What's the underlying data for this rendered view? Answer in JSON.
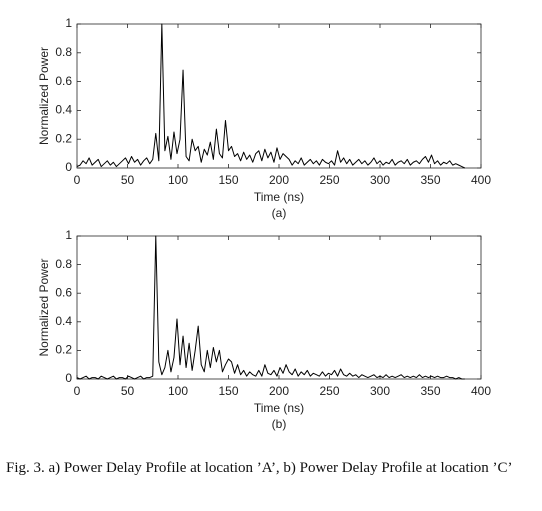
{
  "chart_data": [
    {
      "type": "line",
      "xlabel": "Time (ns)",
      "ylabel": "Normalized Power",
      "panel_label": "(a)",
      "color": "#000000",
      "xlim": [
        0,
        400
      ],
      "ylim": [
        0,
        1
      ],
      "xticks": [
        0,
        50,
        100,
        150,
        200,
        250,
        300,
        350,
        400
      ],
      "yticks": [
        0,
        0.2,
        0.4,
        0.6,
        0.8,
        1
      ],
      "x": [
        0,
        3,
        6,
        9,
        12,
        15,
        18,
        21,
        24,
        27,
        30,
        33,
        36,
        39,
        42,
        45,
        48,
        51,
        54,
        57,
        60,
        63,
        66,
        69,
        72,
        75,
        78,
        81,
        84,
        87,
        90,
        93,
        96,
        99,
        102,
        105,
        108,
        111,
        114,
        117,
        120,
        123,
        126,
        129,
        132,
        135,
        138,
        141,
        144,
        147,
        150,
        153,
        156,
        159,
        162,
        165,
        168,
        171,
        174,
        177,
        180,
        183,
        186,
        189,
        192,
        195,
        198,
        201,
        204,
        207,
        210,
        213,
        216,
        219,
        222,
        225,
        228,
        231,
        234,
        237,
        240,
        243,
        246,
        249,
        252,
        255,
        258,
        261,
        264,
        267,
        270,
        273,
        276,
        279,
        282,
        285,
        288,
        291,
        294,
        297,
        300,
        303,
        306,
        309,
        312,
        315,
        318,
        321,
        324,
        327,
        330,
        333,
        336,
        339,
        342,
        345,
        348,
        351,
        354,
        357,
        360,
        363,
        366,
        369,
        372,
        375,
        378,
        381,
        384
      ],
      "values": [
        0.01,
        0.02,
        0.05,
        0.03,
        0.07,
        0.02,
        0.04,
        0.06,
        0.01,
        0.03,
        0.05,
        0.02,
        0.04,
        0.01,
        0.03,
        0.05,
        0.07,
        0.03,
        0.08,
        0.04,
        0.06,
        0.02,
        0.05,
        0.07,
        0.03,
        0.06,
        0.24,
        0.05,
        1,
        0.12,
        0.22,
        0.06,
        0.25,
        0.1,
        0.2,
        0.68,
        0.08,
        0.05,
        0.2,
        0.12,
        0.15,
        0.04,
        0.13,
        0.09,
        0.18,
        0.06,
        0.27,
        0.1,
        0.07,
        0.33,
        0.12,
        0.15,
        0.08,
        0.1,
        0.05,
        0.11,
        0.06,
        0.09,
        0.04,
        0.1,
        0.12,
        0.05,
        0.13,
        0.07,
        0.11,
        0.04,
        0.14,
        0.06,
        0.1,
        0.08,
        0.06,
        0.02,
        0.05,
        0.03,
        0.07,
        0.02,
        0.04,
        0.06,
        0.03,
        0.05,
        0.02,
        0.06,
        0.04,
        0.03,
        0.05,
        0.02,
        0.12,
        0.04,
        0.07,
        0.03,
        0.06,
        0.02,
        0.04,
        0.06,
        0.03,
        0.05,
        0.02,
        0.04,
        0.07,
        0.03,
        0.05,
        0.02,
        0.04,
        0.03,
        0.06,
        0.02,
        0.04,
        0.05,
        0.03,
        0.06,
        0.02,
        0.04,
        0.05,
        0.03,
        0.06,
        0.08,
        0.04,
        0.09,
        0.03,
        0.05,
        0.02,
        0.04,
        0.03,
        0.05,
        0.02,
        0.03,
        0.02,
        0.01,
        0
      ]
    },
    {
      "type": "line",
      "xlabel": "Time (ns)",
      "ylabel": "Normalized Power",
      "panel_label": "(b)",
      "color": "#000000",
      "xlim": [
        0,
        400
      ],
      "ylim": [
        0,
        1
      ],
      "xticks": [
        0,
        50,
        100,
        150,
        200,
        250,
        300,
        350,
        400
      ],
      "yticks": [
        0,
        0.2,
        0.4,
        0.6,
        0.8,
        1
      ],
      "x": [
        0,
        3,
        6,
        9,
        12,
        15,
        18,
        21,
        24,
        27,
        30,
        33,
        36,
        39,
        42,
        45,
        48,
        51,
        54,
        57,
        60,
        63,
        66,
        69,
        72,
        75,
        78,
        81,
        84,
        87,
        90,
        93,
        96,
        99,
        102,
        105,
        108,
        111,
        114,
        117,
        120,
        123,
        126,
        129,
        132,
        135,
        138,
        141,
        144,
        147,
        150,
        153,
        156,
        159,
        162,
        165,
        168,
        171,
        174,
        177,
        180,
        183,
        186,
        189,
        192,
        195,
        198,
        201,
        204,
        207,
        210,
        213,
        216,
        219,
        222,
        225,
        228,
        231,
        234,
        237,
        240,
        243,
        246,
        249,
        252,
        255,
        258,
        261,
        264,
        267,
        270,
        273,
        276,
        279,
        282,
        285,
        288,
        291,
        294,
        297,
        300,
        303,
        306,
        309,
        312,
        315,
        318,
        321,
        324,
        327,
        330,
        333,
        336,
        339,
        342,
        345,
        348,
        351,
        354,
        357,
        360,
        363,
        366,
        369,
        372,
        375,
        378,
        381,
        384
      ],
      "values": [
        0.01,
        0,
        0.01,
        0.02,
        0,
        0.01,
        0.01,
        0,
        0.02,
        0.01,
        0,
        0.01,
        0.02,
        0,
        0.01,
        0.01,
        0,
        0.02,
        0.01,
        0,
        0.01,
        0.02,
        0,
        0.01,
        0.01,
        0.02,
        1,
        0.12,
        0.03,
        0.08,
        0.2,
        0.05,
        0.15,
        0.42,
        0.1,
        0.3,
        0.08,
        0.25,
        0.06,
        0.2,
        0.37,
        0.1,
        0.05,
        0.2,
        0.08,
        0.22,
        0.12,
        0.2,
        0.05,
        0.1,
        0.14,
        0.12,
        0.04,
        0.1,
        0.03,
        0.06,
        0.02,
        0.05,
        0.03,
        0.02,
        0.06,
        0.02,
        0.1,
        0.04,
        0.03,
        0.06,
        0.02,
        0.08,
        0.04,
        0.1,
        0.05,
        0.03,
        0.07,
        0.02,
        0.05,
        0.03,
        0.06,
        0.02,
        0.04,
        0.03,
        0.02,
        0.05,
        0.02,
        0.04,
        0.03,
        0.06,
        0.02,
        0.07,
        0.03,
        0.02,
        0.04,
        0.02,
        0.03,
        0.01,
        0.03,
        0.02,
        0.01,
        0.02,
        0.03,
        0.01,
        0.02,
        0.01,
        0.03,
        0.01,
        0.02,
        0.01,
        0.02,
        0.03,
        0.01,
        0.02,
        0.01,
        0.02,
        0.01,
        0.03,
        0.01,
        0.02,
        0.01,
        0.02,
        0.01,
        0.02,
        0.01,
        0.01,
        0.02,
        0.01,
        0.01,
        0,
        0.01,
        0,
        0
      ]
    }
  ],
  "caption": "Fig. 3.  a) Power Delay Profile at location ’A’, b) Power Delay Profile at location ’C’"
}
